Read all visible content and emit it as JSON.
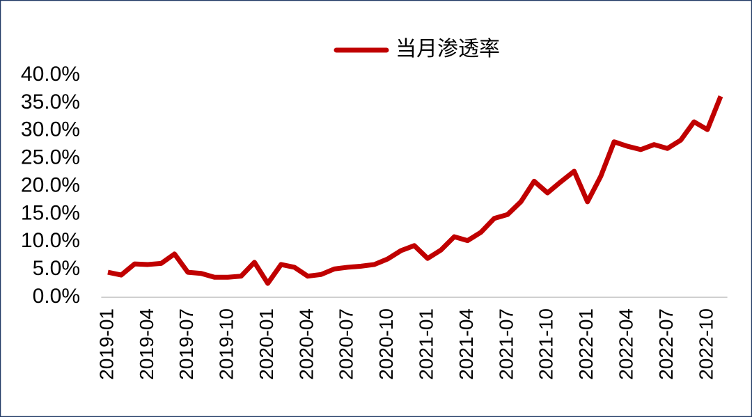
{
  "chart_data": {
    "type": "line",
    "categories": [
      "2019-01",
      null,
      null,
      "2019-04",
      null,
      null,
      "2019-07",
      null,
      null,
      "2019-10",
      null,
      null,
      "2020-01",
      null,
      null,
      "2020-04",
      null,
      null,
      "2020-07",
      null,
      null,
      "2020-10",
      null,
      null,
      "2021-01",
      null,
      null,
      "2021-04",
      null,
      null,
      "2021-07",
      null,
      null,
      "2021-10",
      null,
      null,
      "2022-01",
      null,
      null,
      "2022-04",
      null,
      null,
      "2022-07",
      null,
      null,
      "2022-10",
      null
    ],
    "series": [
      {
        "name": "当月渗透率",
        "color": "#c00000",
        "values": [
          4.5,
          4.0,
          6.0,
          5.9,
          6.1,
          7.8,
          4.5,
          4.3,
          3.6,
          3.6,
          3.8,
          6.3,
          2.5,
          5.9,
          5.4,
          3.8,
          4.1,
          5.1,
          5.4,
          5.6,
          5.9,
          6.9,
          8.4,
          9.3,
          7.0,
          8.5,
          10.9,
          10.2,
          11.7,
          14.2,
          14.9,
          17.2,
          20.9,
          18.8,
          20.8,
          22.7,
          17.2,
          21.8,
          28.0,
          27.2,
          26.6,
          27.5,
          26.8,
          28.3,
          31.6,
          30.2,
          36.2
        ]
      }
    ],
    "ylim": [
      0,
      40
    ],
    "yticks": [
      {
        "value": 0,
        "label": "0.0%"
      },
      {
        "value": 5,
        "label": "5.0%"
      },
      {
        "value": 10,
        "label": "10.0%"
      },
      {
        "value": 15,
        "label": "15.0%"
      },
      {
        "value": 20,
        "label": "20.0%"
      },
      {
        "value": 25,
        "label": "25.0%"
      },
      {
        "value": 30,
        "label": "30.0%"
      },
      {
        "value": 35,
        "label": "35.0%"
      },
      {
        "value": 40,
        "label": "40.0%"
      }
    ],
    "legend": "top"
  }
}
